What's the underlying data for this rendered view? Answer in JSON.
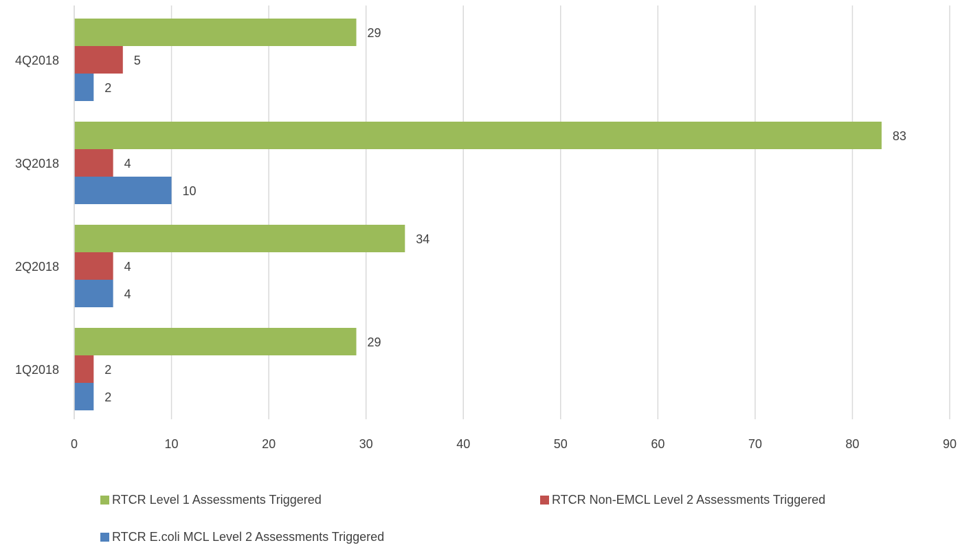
{
  "chart_data": {
    "type": "bar",
    "orientation": "horizontal",
    "categories": [
      "1Q2018",
      "2Q2018",
      "3Q2018",
      "4Q2018"
    ],
    "series": [
      {
        "name": "RTCR Level 1 Assessments Triggered",
        "color": "#9BBB59",
        "values": [
          29,
          34,
          83,
          29
        ]
      },
      {
        "name": "RTCR Non-EMCL Level 2 Assessments Triggered",
        "color": "#C0504D",
        "values": [
          2,
          4,
          4,
          5
        ]
      },
      {
        "name": "RTCR E.coli MCL Level 2 Assessments Triggered",
        "color": "#4F81BD",
        "values": [
          2,
          4,
          10,
          2
        ]
      }
    ],
    "title": "",
    "xlabel": "",
    "ylabel": "",
    "xlim": [
      0,
      90
    ],
    "x_ticks": [
      0,
      10,
      20,
      30,
      40,
      50,
      60,
      70,
      80,
      90
    ],
    "grid": true,
    "data_labels": true,
    "legend_position": "bottom",
    "gridline_color": "#D9D9D9",
    "text_color": "#404040"
  }
}
